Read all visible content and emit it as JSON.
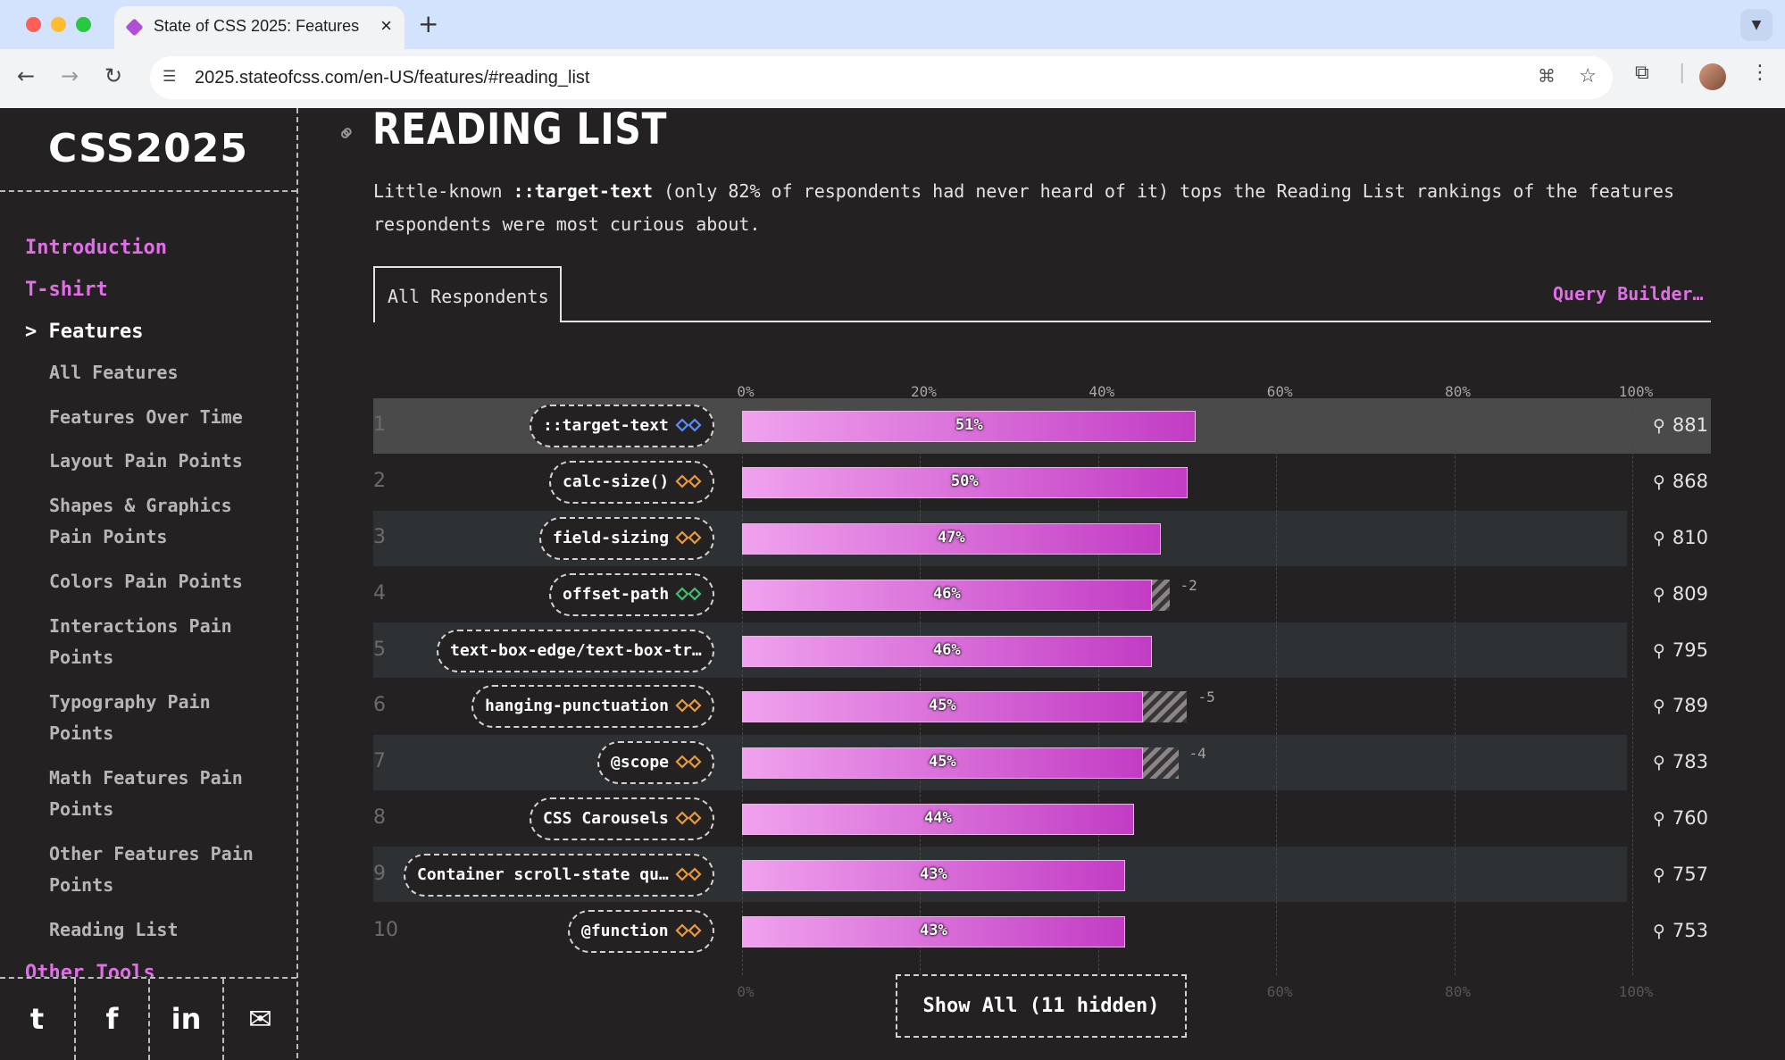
{
  "browser": {
    "tab_title": "State of CSS 2025: Features",
    "url": "2025.stateofcss.com/en-US/features/#reading_list",
    "colors": {
      "close": "#ff5f57",
      "minimize": "#febc2e",
      "maximize": "#28c840"
    }
  },
  "sidebar": {
    "logo": "CSS2025",
    "top_items": [
      {
        "label": "Introduction"
      },
      {
        "label": "T-shirt"
      }
    ],
    "active_item": {
      "prefix": ">",
      "label": "Features"
    },
    "sub_items": [
      {
        "label": "All Features"
      },
      {
        "label": "Features Over Time"
      },
      {
        "label": "Layout Pain Points"
      },
      {
        "label": "Shapes & Graphics Pain Points"
      },
      {
        "label": "Colors Pain Points"
      },
      {
        "label": "Interactions Pain Points"
      },
      {
        "label": "Typography Pain Points"
      },
      {
        "label": "Math Features Pain Points"
      },
      {
        "label": "Other Features Pain Points"
      },
      {
        "label": "Reading List"
      }
    ],
    "other_tools": "Other Tools",
    "social": [
      "twitter-icon",
      "facebook-icon",
      "linkedin-icon",
      "email-icon"
    ]
  },
  "section": {
    "title": "READING LIST",
    "description_pre": "Little-known ",
    "description_code": "::target-text",
    "description_post": " (only 82% of respondents had never heard of it) tops the Reading List rankings of the features respondents were most curious about.",
    "tab": "All Respondents",
    "query_builder": "Query Builder…",
    "show_all": "Show All (11 hidden)"
  },
  "chart_data": {
    "type": "bar",
    "orientation": "horizontal",
    "axis_ticks": [
      "0%",
      "20%",
      "40%",
      "60%",
      "80%",
      "100%"
    ],
    "xlim": [
      0,
      100
    ],
    "accent": "#e26de8",
    "rows": [
      {
        "rank": "1",
        "name": "::target-text",
        "value": 51,
        "label": "51%",
        "delta": "",
        "delta_value": 0,
        "count": "881",
        "icon_color": "#5b8cff"
      },
      {
        "rank": "2",
        "name": "calc-size()",
        "value": 50,
        "label": "50%",
        "delta": "",
        "delta_value": 0,
        "count": "868",
        "icon_color": "#e89a3c"
      },
      {
        "rank": "3",
        "name": "field-sizing",
        "value": 47,
        "label": "47%",
        "delta": "",
        "delta_value": 0,
        "count": "810",
        "icon_color": "#e89a3c"
      },
      {
        "rank": "4",
        "name": "offset-path",
        "value": 46,
        "label": "46%",
        "delta": "-2",
        "delta_value": 2,
        "count": "809",
        "icon_color": "#3fbf6f"
      },
      {
        "rank": "5",
        "name": "text-box-edge/text-box-tr…",
        "value": 46,
        "label": "46%",
        "delta": "",
        "delta_value": 0,
        "count": "795",
        "icon_color": ""
      },
      {
        "rank": "6",
        "name": "hanging-punctuation",
        "value": 45,
        "label": "45%",
        "delta": "-5",
        "delta_value": 5,
        "count": "789",
        "icon_color": "#e89a3c"
      },
      {
        "rank": "7",
        "name": "@scope",
        "value": 45,
        "label": "45%",
        "delta": "-4",
        "delta_value": 4,
        "count": "783",
        "icon_color": "#e89a3c"
      },
      {
        "rank": "8",
        "name": "CSS Carousels",
        "value": 44,
        "label": "44%",
        "delta": "",
        "delta_value": 0,
        "count": "760",
        "icon_color": "#e89a3c"
      },
      {
        "rank": "9",
        "name": "Container scroll-state qu…",
        "value": 43,
        "label": "43%",
        "delta": "",
        "delta_value": 0,
        "count": "757",
        "icon_color": "#e89a3c"
      },
      {
        "rank": "10",
        "name": "@function",
        "value": 43,
        "label": "43%",
        "delta": "",
        "delta_value": 0,
        "count": "753",
        "icon_color": "#e89a3c"
      }
    ]
  }
}
